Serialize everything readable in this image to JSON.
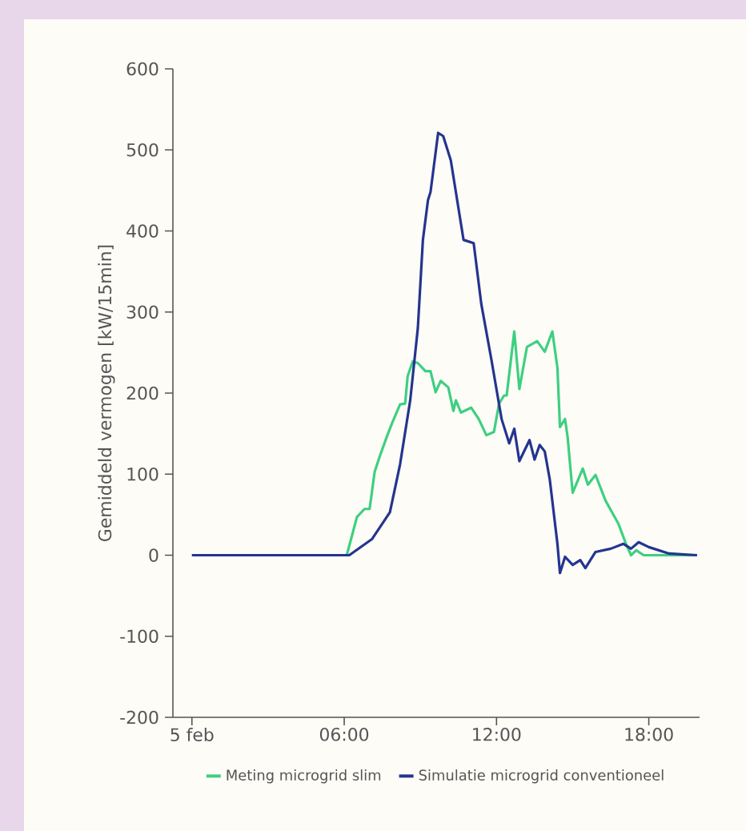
{
  "chart_data": {
    "type": "line",
    "ylabel": "Gemiddeld vermogen [kW/15min]",
    "xlim": [
      -0.75,
      20
    ],
    "ylim": [
      -200,
      600
    ],
    "xticks": [
      {
        "value": 0,
        "label": "5 feb"
      },
      {
        "value": 6,
        "label": "06:00"
      },
      {
        "value": 12,
        "label": "12:00"
      },
      {
        "value": 18,
        "label": "18:00"
      }
    ],
    "yticks": [
      -200,
      -100,
      0,
      100,
      200,
      300,
      400,
      500,
      600
    ],
    "legend": "bottom",
    "grid": false,
    "marker": "none",
    "series": [
      {
        "name": "Meting microgrid slim",
        "color": "#3ecf80",
        "x": [
          0,
          6.1,
          6.5,
          6.8,
          7.0,
          7.2,
          7.4,
          7.7,
          7.9,
          8.2,
          8.4,
          8.5,
          8.7,
          8.9,
          9.2,
          9.4,
          9.6,
          9.8,
          10.1,
          10.3,
          10.4,
          10.6,
          11.0,
          11.3,
          11.6,
          11.9,
          12.1,
          12.3,
          12.4,
          12.7,
          12.9,
          13.2,
          13.6,
          13.9,
          14.2,
          14.4,
          14.5,
          14.7,
          14.8,
          15.0,
          15.4,
          15.6,
          15.9,
          16.3,
          16.8,
          17.1,
          17.3,
          17.5,
          17.8,
          18.4,
          19.9
        ],
        "values": [
          0,
          0,
          47,
          57,
          57,
          103,
          122,
          148,
          164,
          186,
          187,
          221,
          239,
          237,
          227,
          227,
          201,
          215,
          207,
          178,
          191,
          176,
          182,
          168,
          148,
          152,
          187,
          197,
          197,
          276,
          205,
          257,
          264,
          251,
          276,
          231,
          158,
          168,
          146,
          77,
          107,
          87,
          99,
          67,
          39,
          14,
          0,
          6,
          0,
          0,
          0
        ]
      },
      {
        "name": "Simulatie microgrid conventioneel",
        "color": "#25348f",
        "x": [
          0,
          6.2,
          7.1,
          7.8,
          8.2,
          8.6,
          8.9,
          9.1,
          9.3,
          9.4,
          9.7,
          9.9,
          10.2,
          10.7,
          11.1,
          11.4,
          11.8,
          12.2,
          12.5,
          12.7,
          12.9,
          13.3,
          13.5,
          13.7,
          13.9,
          14.1,
          14.4,
          14.5,
          14.7,
          15.0,
          15.3,
          15.5,
          15.9,
          16.5,
          17.0,
          17.3,
          17.6,
          18.0,
          18.8,
          19.9
        ],
        "values": [
          0,
          0,
          20,
          53,
          112,
          191,
          280,
          389,
          438,
          448,
          521,
          517,
          487,
          389,
          385,
          310,
          241,
          168,
          138,
          156,
          116,
          142,
          118,
          136,
          128,
          93,
          14,
          -22,
          -2,
          -12,
          -6,
          -16,
          4,
          8,
          14,
          8,
          16,
          10,
          2,
          0
        ]
      }
    ]
  }
}
